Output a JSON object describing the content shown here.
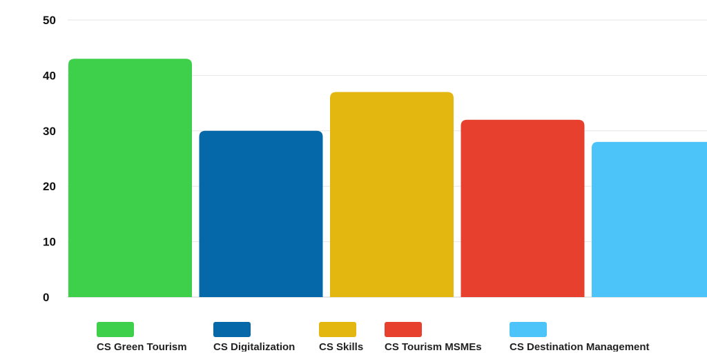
{
  "chart_data": {
    "type": "bar",
    "categories": [
      "CS Green Tourism",
      "CS Digitalization",
      "CS Skills",
      "CS Tourism MSMEs",
      "CS Destination Management"
    ],
    "values": [
      43,
      30,
      37,
      32,
      28
    ],
    "colors": [
      "#3ecf4b",
      "#0569a9",
      "#e4b610",
      "#e8402e",
      "#4cc3f9"
    ],
    "title": "",
    "xlabel": "",
    "ylabel": "",
    "ylim": [
      0,
      50
    ],
    "yticks": [
      "0",
      "10",
      "20",
      "30",
      "40",
      "50"
    ],
    "grid": true,
    "legend": "bottom"
  }
}
